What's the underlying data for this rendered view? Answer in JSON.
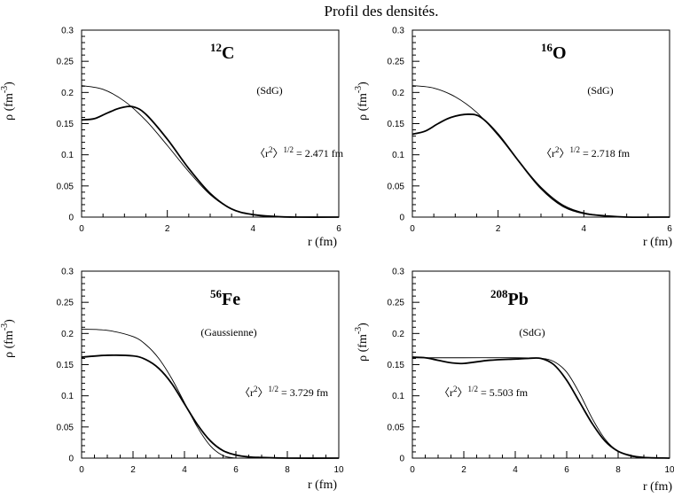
{
  "page_title": "Profil des densités.",
  "chart_data": [
    {
      "type": "line",
      "nucleus": {
        "mass": "12",
        "symbol": "C"
      },
      "model": "(SdG)",
      "rms_text": {
        "lhs": "〈r",
        "sup1": "2",
        "mid": "〉",
        "sup2": "1/2",
        "rhs": " = 2.471 fm"
      },
      "xlabel": "r (fm)",
      "ylabel": {
        "base": "ρ (fm",
        "sup": "-3",
        "end": ")"
      },
      "xlim": [
        0,
        6
      ],
      "ylim": [
        0,
        0.3
      ],
      "x_ticks": [
        "0",
        "2",
        "4",
        "6"
      ],
      "y_ticks": [
        "0",
        "0.05",
        "0.1",
        "0.15",
        "0.2",
        "0.25",
        "0.3"
      ],
      "series": [
        {
          "style": "thin",
          "x": [
            0,
            0.5,
            1,
            1.5,
            2,
            2.5,
            3,
            3.5,
            4,
            4.5,
            5,
            6
          ],
          "y": [
            0.211,
            0.205,
            0.186,
            0.155,
            0.115,
            0.073,
            0.036,
            0.013,
            0.004,
            0.001,
            0.0,
            0.0
          ]
        },
        {
          "style": "thick",
          "x": [
            0,
            0.3,
            0.6,
            0.9,
            1.2,
            1.5,
            2,
            2.5,
            3,
            3.5,
            4,
            4.5,
            5,
            6
          ],
          "y": [
            0.156,
            0.158,
            0.167,
            0.175,
            0.177,
            0.165,
            0.125,
            0.078,
            0.038,
            0.013,
            0.004,
            0.001,
            0.0,
            0.0
          ]
        }
      ]
    },
    {
      "type": "line",
      "nucleus": {
        "mass": "16",
        "symbol": "O"
      },
      "model": "(SdG)",
      "rms_text": {
        "lhs": "〈r",
        "sup1": "2",
        "mid": "〉",
        "sup2": "1/2",
        "rhs": " = 2.718 fm"
      },
      "xlabel": "r (fm)",
      "ylabel": {
        "base": "ρ (fm",
        "sup": "-3",
        "end": ")"
      },
      "xlim": [
        0,
        6
      ],
      "ylim": [
        0,
        0.3
      ],
      "x_ticks": [
        "0",
        "2",
        "4",
        "6"
      ],
      "y_ticks": [
        "0",
        "0.05",
        "0.1",
        "0.15",
        "0.2",
        "0.25",
        "0.3"
      ],
      "series": [
        {
          "style": "thin",
          "x": [
            0,
            0.5,
            1,
            1.5,
            2,
            2.5,
            3,
            3.5,
            4,
            4.5,
            5,
            6
          ],
          "y": [
            0.211,
            0.207,
            0.193,
            0.168,
            0.131,
            0.088,
            0.048,
            0.02,
            0.007,
            0.002,
            0.0,
            0.0
          ]
        },
        {
          "style": "thick",
          "x": [
            0,
            0.3,
            0.6,
            0.9,
            1.3,
            1.6,
            2,
            2.5,
            3,
            3.5,
            4,
            4.5,
            5,
            6
          ],
          "y": [
            0.133,
            0.138,
            0.15,
            0.16,
            0.165,
            0.16,
            0.133,
            0.088,
            0.046,
            0.018,
            0.006,
            0.002,
            0.0,
            0.0
          ]
        }
      ]
    },
    {
      "type": "line",
      "nucleus": {
        "mass": "56",
        "symbol": "Fe"
      },
      "model": "(Gaussienne)",
      "rms_text": {
        "lhs": "〈r",
        "sup1": "2",
        "mid": "〉",
        "sup2": "1/2",
        "rhs": " = 3.729 fm"
      },
      "xlabel": "r (fm)",
      "ylabel": {
        "base": "ρ (fm",
        "sup": "-3",
        "end": ")"
      },
      "xlim": [
        0,
        10
      ],
      "ylim": [
        0,
        0.3
      ],
      "x_ticks": [
        "0",
        "2",
        "4",
        "6",
        "8",
        "10"
      ],
      "y_ticks": [
        "0",
        "0.05",
        "0.1",
        "0.15",
        "0.2",
        "0.25",
        "0.3"
      ],
      "series": [
        {
          "style": "thin",
          "x": [
            0,
            1,
            2,
            2.5,
            3,
            3.5,
            4,
            4.5,
            5,
            5.5,
            6
          ],
          "y": [
            0.207,
            0.205,
            0.195,
            0.182,
            0.16,
            0.128,
            0.089,
            0.05,
            0.02,
            0.004,
            0.0
          ]
        },
        {
          "style": "thick",
          "x": [
            0,
            1,
            2,
            2.5,
            3,
            3.5,
            4,
            4.5,
            5,
            5.5,
            6,
            6.5,
            7,
            8,
            10
          ],
          "y": [
            0.162,
            0.165,
            0.164,
            0.158,
            0.144,
            0.12,
            0.087,
            0.054,
            0.028,
            0.012,
            0.005,
            0.002,
            0.001,
            0.0,
            0.0
          ]
        }
      ]
    },
    {
      "type": "line",
      "nucleus": {
        "mass": "208",
        "symbol": "Pb"
      },
      "model": "(SdG)",
      "rms_text": {
        "lhs": "〈r",
        "sup1": "2",
        "mid": "〉",
        "sup2": "1/2",
        "rhs": " = 5.503 fm"
      },
      "xlabel": "r (fm)",
      "ylabel": {
        "base": "ρ (fm",
        "sup": "-3",
        "end": ")"
      },
      "xlim": [
        0,
        10
      ],
      "ylim": [
        0,
        0.3
      ],
      "x_ticks": [
        "0",
        "2",
        "4",
        "6",
        "8",
        "10"
      ],
      "y_ticks": [
        "0",
        "0.05",
        "0.1",
        "0.15",
        "0.2",
        "0.25",
        "0.3"
      ],
      "series": [
        {
          "style": "thin",
          "x": [
            0,
            2,
            4,
            5,
            5.5,
            6,
            6.5,
            7,
            7.5,
            8,
            8.5,
            9,
            10
          ],
          "y": [
            0.161,
            0.161,
            0.161,
            0.16,
            0.155,
            0.138,
            0.104,
            0.063,
            0.03,
            0.011,
            0.003,
            0.001,
            0.0
          ]
        },
        {
          "style": "thick",
          "x": [
            0,
            0.5,
            1,
            1.5,
            2,
            3,
            4,
            4.5,
            5,
            5.5,
            6,
            6.5,
            7,
            7.5,
            8,
            8.5,
            9,
            10
          ],
          "y": [
            0.162,
            0.161,
            0.157,
            0.153,
            0.152,
            0.157,
            0.159,
            0.16,
            0.16,
            0.15,
            0.125,
            0.09,
            0.055,
            0.027,
            0.011,
            0.004,
            0.001,
            0.0
          ]
        }
      ]
    }
  ]
}
